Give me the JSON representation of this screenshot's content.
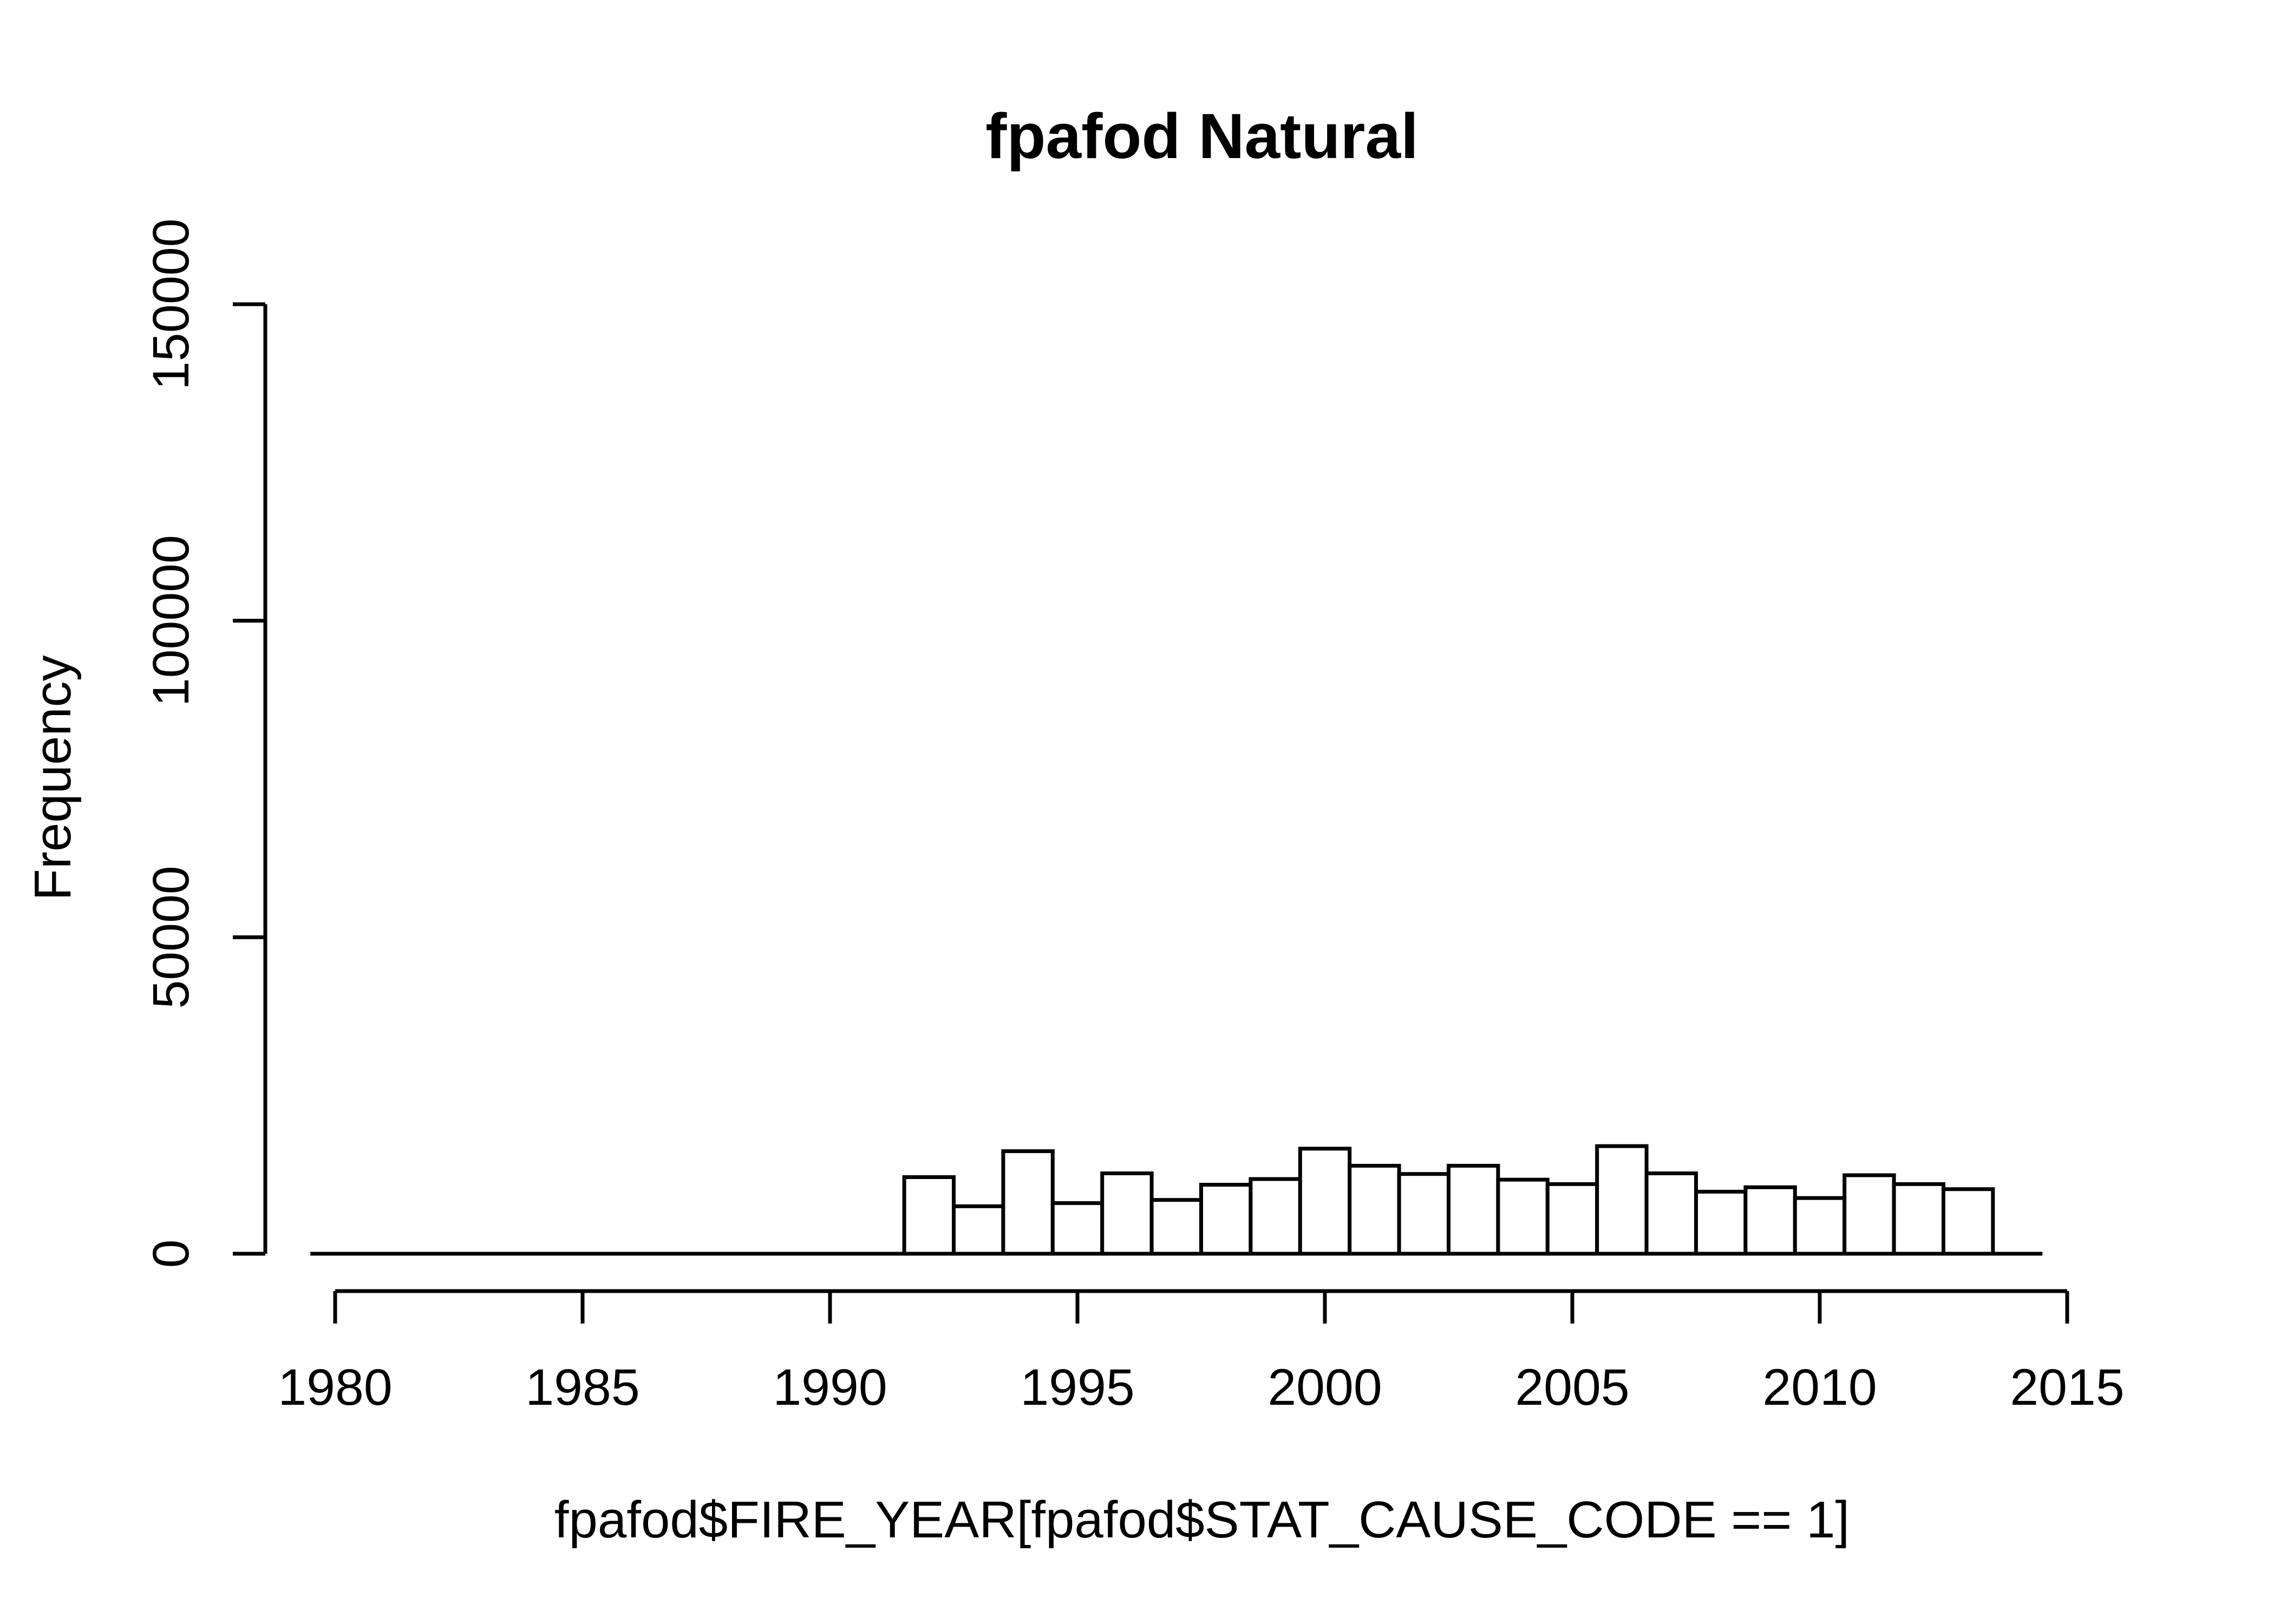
{
  "title": "fpafod Natural",
  "colors": {
    "background": "#ffffff",
    "foreground": "#000000",
    "bar_fill": "#ffffff",
    "bar_stroke": "#000000"
  },
  "chart_data": {
    "type": "bar",
    "subtype": "histogram",
    "title": "fpafod Natural",
    "xlabel": "fpafod$FIRE_YEAR[fpafod$STAT_CAUSE_CODE == 1]",
    "ylabel": "Frequency",
    "xlim": [
      1979.5,
      2014.5
    ],
    "ylim": [
      0,
      150000
    ],
    "bin_width": 1,
    "grid": false,
    "legend_position": "none",
    "x_ticks": [
      1980,
      1985,
      1990,
      1995,
      2000,
      2005,
      2010,
      2015
    ],
    "x_tick_labels": [
      "1980",
      "1985",
      "1990",
      "1995",
      "2000",
      "2005",
      "2010",
      "2015"
    ],
    "y_ticks": [
      0,
      50000,
      100000,
      150000
    ],
    "y_tick_labels": [
      "0",
      "50000",
      "100000",
      "150000"
    ],
    "categories": [
      1980,
      1981,
      1982,
      1983,
      1984,
      1985,
      1986,
      1987,
      1988,
      1989,
      1990,
      1991,
      1992,
      1993,
      1994,
      1995,
      1996,
      1997,
      1998,
      1999,
      2000,
      2001,
      2002,
      2003,
      2004,
      2005,
      2006,
      2007,
      2008,
      2009,
      2010,
      2011,
      2012,
      2013,
      2014
    ],
    "values": [
      0,
      0,
      0,
      0,
      0,
      0,
      0,
      0,
      0,
      0,
      0,
      0,
      12100,
      7500,
      16200,
      8000,
      12700,
      8500,
      10900,
      11800,
      16600,
      13900,
      12600,
      13900,
      11700,
      11000,
      17000,
      12700,
      9800,
      10500,
      8800,
      12400,
      11000,
      10200,
      0
    ],
    "bar_fill": "#ffffff",
    "bar_stroke": "#000000"
  }
}
